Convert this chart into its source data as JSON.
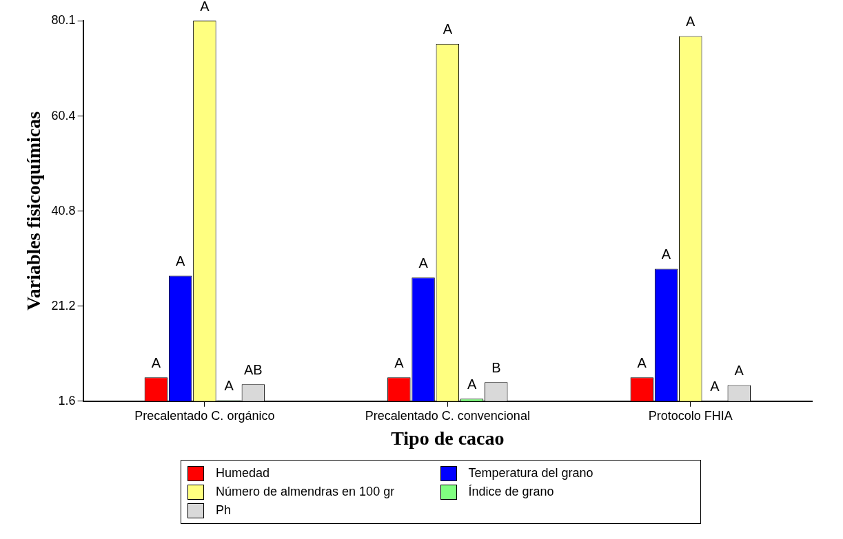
{
  "chart_data": {
    "type": "bar",
    "xlabel": "Tipo de cacao",
    "ylabel": "Variables fisicoquímicas",
    "categories": [
      "Precalentado C. orgánico",
      "Precalentado C. convencional",
      "Protocolo FHIA"
    ],
    "ylim": [
      1.6,
      80.1
    ],
    "yticks": [
      1.6,
      21.2,
      40.8,
      60.4,
      80.1
    ],
    "grid": false,
    "legend": "bottom",
    "series": [
      {
        "name": "Humedad",
        "color": "#ff0000",
        "values": [
          6.5,
          6.5,
          6.5
        ],
        "value_labels": [
          "A",
          "A",
          "A"
        ]
      },
      {
        "name": "Temperatura del grano",
        "color": "#0000ff",
        "values": [
          27.5,
          27.1,
          28.9
        ],
        "value_labels": [
          "A",
          "A",
          "A"
        ]
      },
      {
        "name": "Número de almendras en 100 gr",
        "color": "#ffff80",
        "values": [
          80.1,
          75.3,
          76.9
        ],
        "value_labels": [
          "A",
          "A",
          "A"
        ]
      },
      {
        "name": "Índice de grano",
        "color": "#80ff80",
        "values": [
          1.8,
          2.1,
          1.7
        ],
        "value_labels": [
          "A",
          "A",
          "A"
        ]
      },
      {
        "name": "Ph",
        "color": "#d9d9d9",
        "values": [
          5.1,
          5.5,
          4.9
        ],
        "value_labels": [
          "AB",
          "B",
          "A"
        ]
      }
    ]
  }
}
